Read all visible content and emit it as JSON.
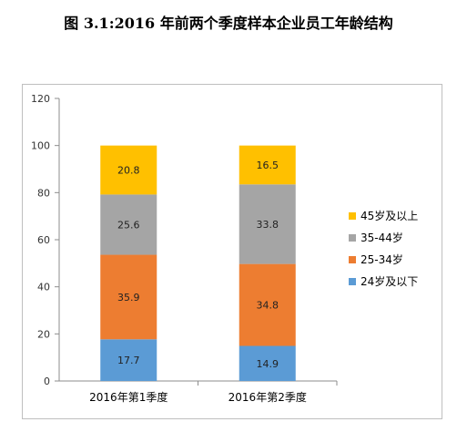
{
  "title": "图 3.1:2016 年前两个季度样本企业员工年龄结构",
  "chart_data": {
    "type": "bar",
    "stacked": true,
    "categories": [
      "2016年第1季度",
      "2016年第2季度"
    ],
    "series": [
      {
        "name": "24岁及以下",
        "color": "#5B9BD5",
        "values": [
          17.7,
          14.9
        ]
      },
      {
        "name": "25-34岁",
        "color": "#ED7D31",
        "values": [
          35.9,
          34.8
        ]
      },
      {
        "name": "35-44岁",
        "color": "#A5A5A5",
        "values": [
          25.6,
          33.8
        ]
      },
      {
        "name": "45岁及以上",
        "color": "#FFC000",
        "values": [
          20.8,
          16.5
        ]
      }
    ],
    "ylim": [
      0,
      120
    ],
    "yticks": [
      0,
      20,
      40,
      60,
      80,
      100,
      120
    ],
    "grid": false,
    "legend_position": "right",
    "legend_order": [
      "45岁及以上",
      "35-44岁",
      "25-34岁",
      "24岁及以下"
    ]
  }
}
